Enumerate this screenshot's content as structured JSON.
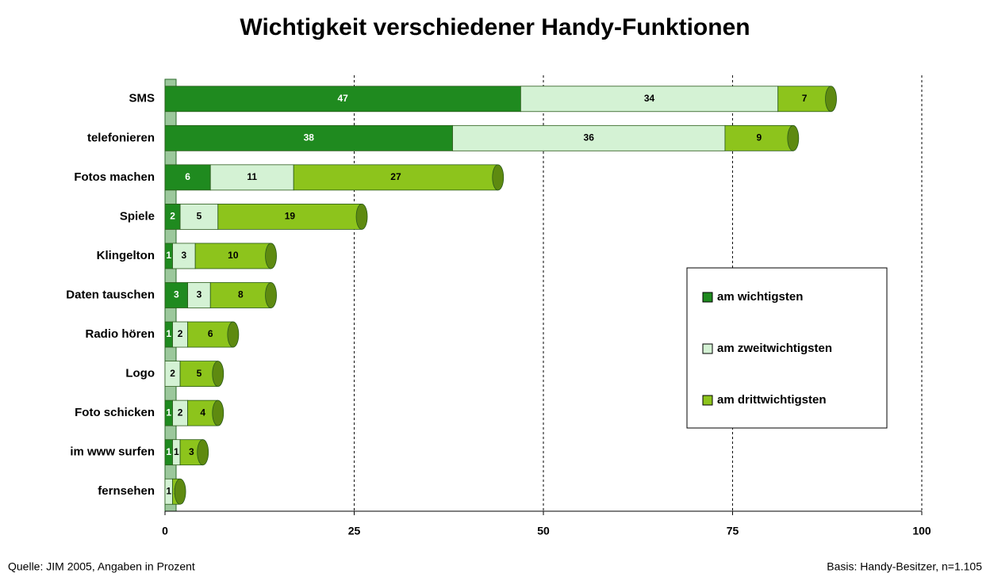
{
  "chart_data": {
    "type": "stacked_bar_horizontal",
    "title": "Wichtigkeit verschiedener Handy-Funktionen",
    "categories": [
      "SMS",
      "telefonieren",
      "Fotos machen",
      "Spiele",
      "Klingelton",
      "Daten tauschen",
      "Radio hören",
      "Logo",
      "Foto schicken",
      "im www surfen",
      "fernsehen"
    ],
    "series": [
      {
        "name": "am wichtigsten",
        "color": "#1f8a1f",
        "values": [
          47,
          38,
          6,
          2,
          1,
          3,
          1,
          null,
          1,
          1,
          null
        ]
      },
      {
        "name": "am zweitwichtigsten",
        "color": "#d4f2d4",
        "values": [
          34,
          36,
          11,
          5,
          3,
          3,
          2,
          2,
          2,
          1,
          1
        ]
      },
      {
        "name": "am drittwichtigsten",
        "color": "#8dc41c",
        "values": [
          7,
          9,
          27,
          19,
          10,
          8,
          6,
          5,
          4,
          3,
          1
        ]
      }
    ],
    "xlim": [
      0,
      100
    ],
    "xticks": [
      0,
      25,
      50,
      75,
      100
    ],
    "grid": true,
    "legend": "right",
    "source": "Quelle: JIM 2005, Angaben in Prozent",
    "basis": "Basis: Handy-Besitzer, n=1.105"
  }
}
